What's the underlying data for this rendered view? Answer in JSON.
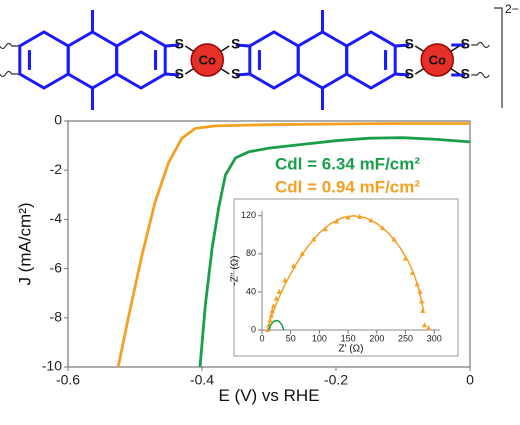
{
  "structure": {
    "sulfur": "S",
    "cobalt": "Co",
    "charge": "2−"
  },
  "chart_data": [
    {
      "type": "line",
      "xlabel": "E (V) vs RHE",
      "ylabel": "J (mA/cm²)",
      "xlim": [
        -0.6,
        0
      ],
      "xticks": [
        -0.6,
        -0.4,
        -0.2,
        0
      ],
      "ylim": [
        -10,
        0
      ],
      "yticks": [
        -10,
        -8,
        -6,
        -4,
        -2,
        0
      ],
      "series": [
        {
          "name": "Cdl = 6.34 mF/cm²",
          "color": "#1a9e4a",
          "x": [
            -0.403,
            -0.395,
            -0.385,
            -0.375,
            -0.365,
            -0.35,
            -0.33,
            -0.3,
            -0.25,
            -0.2,
            -0.15,
            -0.1,
            -0.05,
            0
          ],
          "values": [
            -10,
            -7.5,
            -5.2,
            -3.5,
            -2.2,
            -1.5,
            -1.25,
            -1.1,
            -0.95,
            -0.8,
            -0.7,
            -0.68,
            -0.75,
            -0.85
          ]
        },
        {
          "name": "Cdl = 0.94 mF/cm²",
          "color": "#f5a023",
          "x": [
            -0.525,
            -0.51,
            -0.49,
            -0.47,
            -0.45,
            -0.43,
            -0.41,
            -0.38,
            -0.3,
            -0.2,
            -0.1,
            0
          ],
          "values": [
            -10,
            -8,
            -5.5,
            -3.3,
            -1.7,
            -0.7,
            -0.3,
            -0.2,
            -0.15,
            -0.12,
            -0.1,
            -0.1
          ]
        }
      ]
    },
    {
      "type": "line",
      "xlabel": "Z' (Ω)",
      "ylabel": "-Z'' (Ω)",
      "xlim": [
        0,
        310
      ],
      "xticks": [
        0,
        50,
        100,
        150,
        200,
        250,
        300
      ],
      "ylim": [
        0,
        125
      ],
      "yticks": [
        0,
        40,
        80,
        120
      ],
      "series": [
        {
          "color": "#f5a023",
          "marker": "triangle",
          "x": [
            10,
            12,
            14,
            16,
            18,
            20,
            25,
            30,
            40,
            55,
            70,
            90,
            110,
            130,
            150,
            170,
            190,
            210,
            230,
            250,
            262,
            270,
            275,
            278,
            280,
            283,
            290
          ],
          "values": [
            0,
            5,
            10,
            15,
            20,
            25,
            33,
            40,
            52,
            67,
            80,
            95,
            106,
            114,
            118,
            119,
            115,
            107,
            95,
            75,
            60,
            48,
            40,
            30,
            20,
            5,
            2
          ]
        },
        {
          "color": "#f5a023",
          "x": [
            10,
            15,
            25,
            40,
            60,
            80,
            100,
            120,
            140,
            160,
            180,
            200,
            220,
            240,
            255,
            265,
            272,
            278,
            282
          ],
          "values": [
            0,
            12,
            28,
            48,
            70,
            88,
            102,
            112,
            118,
            120,
            118,
            112,
            102,
            87,
            72,
            58,
            45,
            30,
            18
          ]
        },
        {
          "color": "#1a9e4a",
          "x": [
            12,
            15,
            20,
            25,
            30,
            35,
            38
          ],
          "values": [
            0,
            5,
            9,
            10,
            9,
            5,
            0
          ]
        }
      ]
    }
  ]
}
